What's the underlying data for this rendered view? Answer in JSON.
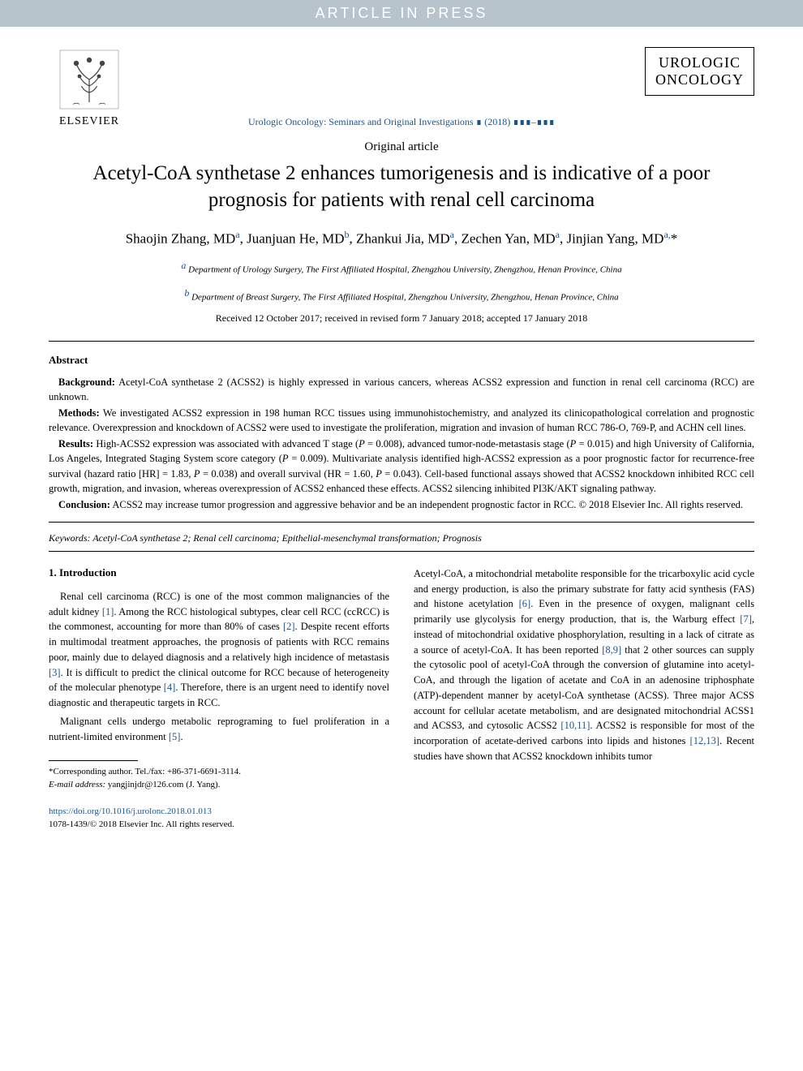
{
  "banner": "ARTICLE IN PRESS",
  "publisher": "ELSEVIER",
  "journal_box": {
    "line1": "UROLOGIC",
    "line2": "ONCOLOGY"
  },
  "journal_line": "Urologic Oncology: Seminars and Original Investigations ∎ (2018) ∎∎∎–∎∎∎",
  "article_type": "Original article",
  "title": "Acetyl-CoA synthetase 2 enhances tumorigenesis and is indicative of a poor prognosis for patients with renal cell carcinoma",
  "authors_html": "Shaojin Zhang, MD<sup class='sup'>a</sup>, Juanjuan He, MD<sup class='sup'>b</sup>, Zhankui Jia, MD<sup class='sup'>a</sup>, Zechen Yan, MD<sup class='sup'>a</sup>, Jinjian Yang, MD<sup class='sup'>a,</sup>*",
  "affil_a": "a Department of Urology Surgery, The First Affiliated Hospital, Zhengzhou University, Zhengzhou, Henan Province, China",
  "affil_b": "b Department of Breast Surgery, The First Affiliated Hospital, Zhengzhou University, Zhengzhou, Henan Province, China",
  "dates": "Received 12 October 2017; received in revised form 7 January 2018; accepted 17 January 2018",
  "abstract_head": "Abstract",
  "abs_bg_label": "Background:",
  "abs_bg": " Acetyl-CoA synthetase 2 (ACSS2) is highly expressed in various cancers, whereas ACSS2 expression and function in renal cell carcinoma (RCC) are unknown.",
  "abs_me_label": "Methods:",
  "abs_me": " We investigated ACSS2 expression in 198 human RCC tissues using immunohistochemistry, and analyzed its clinicopathological correlation and prognostic relevance. Overexpression and knockdown of ACSS2 were used to investigate the proliferation, migration and invasion of human RCC 786-O, 769-P, and ACHN cell lines.",
  "abs_re_label": "Results:",
  "abs_re": " High-ACSS2 expression was associated with advanced T stage (P = 0.008), advanced tumor-node-metastasis stage (P = 0.015) and high University of California, Los Angeles, Integrated Staging System score category (P = 0.009). Multivariate analysis identified high-ACSS2 expression as a poor prognostic factor for recurrence-free survival (hazard ratio [HR] = 1.83, P = 0.038) and overall survival (HR = 1.60, P = 0.043). Cell-based functional assays showed that ACSS2 knockdown inhibited RCC cell growth, migration, and invasion, whereas overexpression of ACSS2 enhanced these effects. ACSS2 silencing inhibited PI3K/AKT signaling pathway.",
  "abs_co_label": "Conclusion:",
  "abs_co": " ACSS2 may increase tumor progression and aggressive behavior and be an independent prognostic factor in RCC. © 2018 Elsevier Inc. All rights reserved.",
  "kw_label": "Keywords:",
  "keywords": " Acetyl-CoA synthetase 2; Renal cell carcinoma; Epithelial-mesenchymal transformation; Prognosis",
  "sec1": "1. Introduction",
  "p1": "Renal cell carcinoma (RCC) is one of the most common malignancies of the adult kidney [1]. Among the RCC histological subtypes, clear cell RCC (ccRCC) is the commonest, accounting for more than 80% of cases [2]. Despite recent efforts in multimodal treatment approaches, the prognosis of patients with RCC remains poor, mainly due to delayed diagnosis and a relatively high incidence of metastasis [3]. It is difficult to predict the clinical outcome for RCC because of heterogeneity of the molecular phenotype [4]. Therefore, there is an urgent need to identify novel diagnostic and therapeutic targets in RCC.",
  "p2": "Malignant cells undergo metabolic reprograming to fuel proliferation in a nutrient-limited environment [5].",
  "p3": "Acetyl-CoA, a mitochondrial metabolite responsible for the tricarboxylic acid cycle and energy production, is also the primary substrate for fatty acid synthesis (FAS) and histone acetylation [6]. Even in the presence of oxygen, malignant cells primarily use glycolysis for energy production, that is, the Warburg effect [7], instead of mitochondrial oxidative phosphorylation, resulting in a lack of citrate as a source of acetyl-CoA. It has been reported [8,9] that 2 other sources can supply the cytosolic pool of acetyl-CoA through the conversion of glutamine into acetyl-CoA, and through the ligation of acetate and CoA in an adenosine triphosphate (ATP)-dependent manner by acetyl-CoA synthetase (ACSS). Three major ACSS account for cellular acetate metabolism, and are designated mitochondrial ACSS1 and ACSS3, and cytosolic ACSS2 [10,11]. ACSS2 is responsible for most of the incorporation of acetate-derived carbons into lipids and histones [12,13]. Recent studies have shown that ACSS2 knockdown inhibits tumor",
  "fn_corr": "*Corresponding author. Tel./fax: +86-371-6691-3114.",
  "fn_email_label": "E-mail address:",
  "fn_email": " yangjinjdr@126.com (J. Yang).",
  "doi": "https://doi.org/10.1016/j.urolonc.2018.01.013",
  "copyright": "1078-1439/© 2018 Elsevier Inc. All rights reserved.",
  "colors": {
    "banner_bg": "#b8c4cc",
    "banner_text": "#ffffff",
    "link": "#1a5490",
    "text": "#000000"
  }
}
